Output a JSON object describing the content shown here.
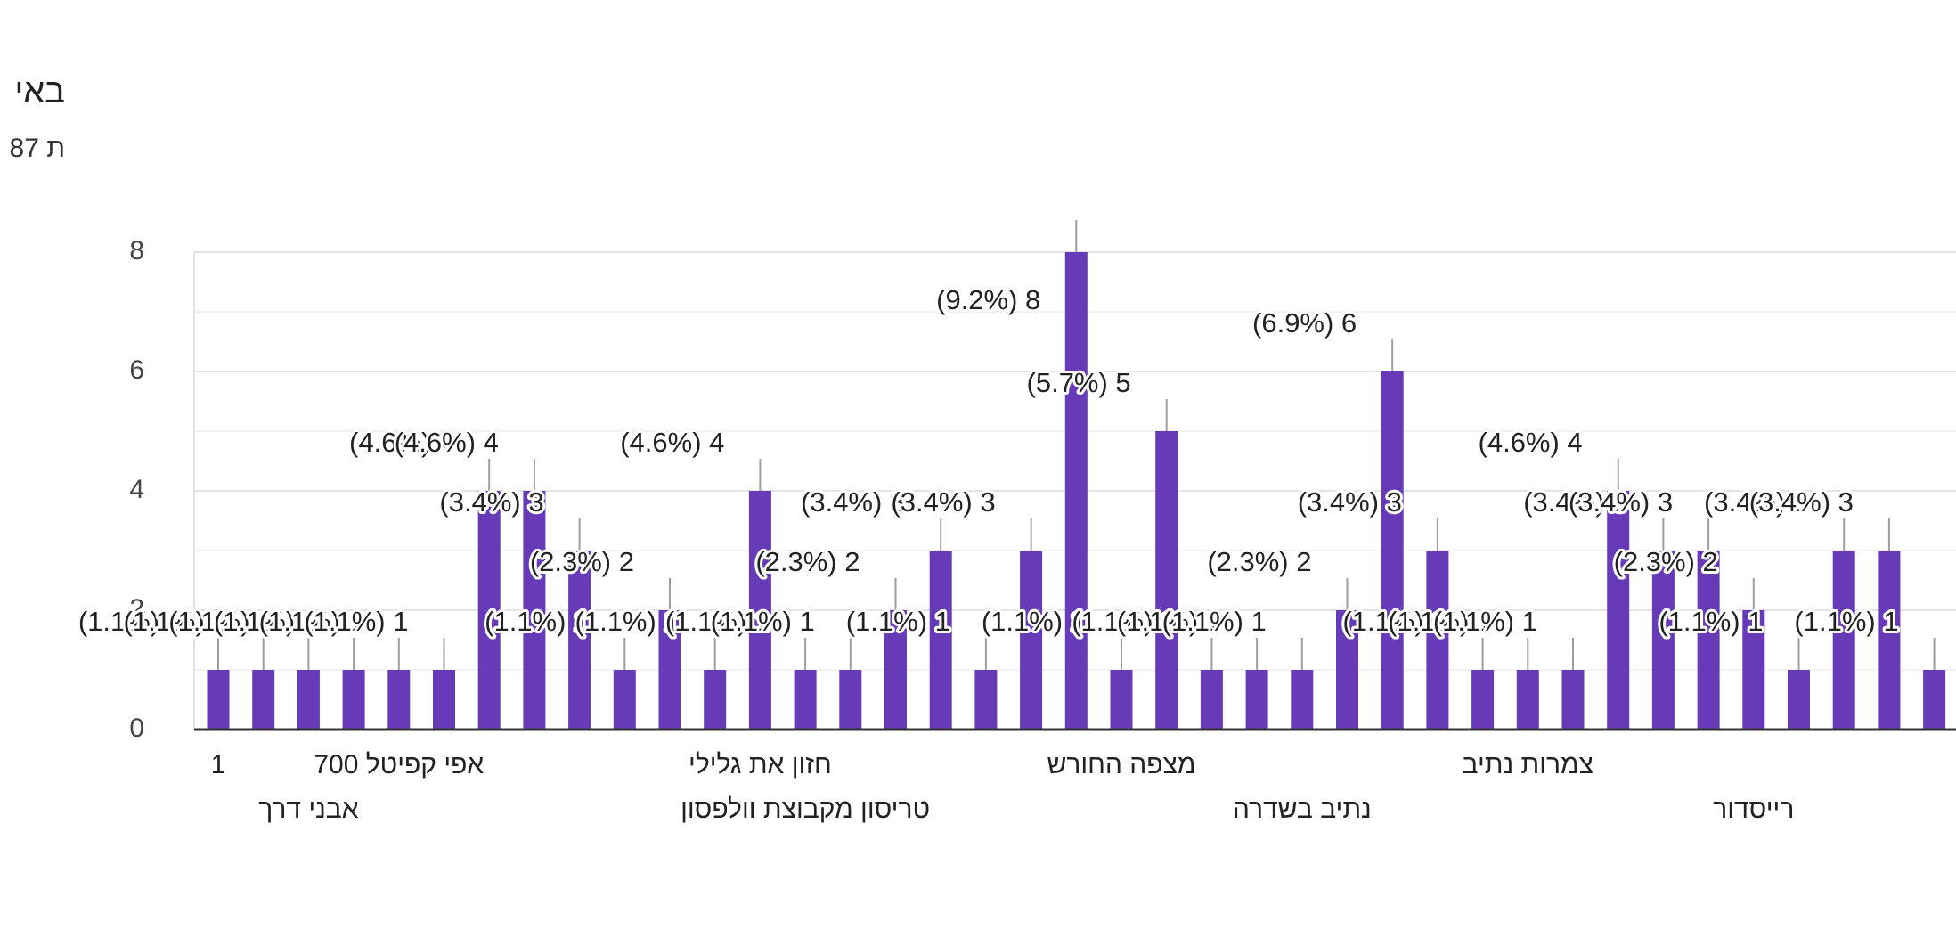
{
  "chart_data": {
    "type": "bar",
    "title": "באי",
    "subtitle": "87 ת",
    "categories": [
      "1",
      null,
      "אבני דרך",
      null,
      "אפי קפיטל 700",
      null,
      null,
      null,
      null,
      null,
      null,
      null,
      "חזון את גלילי",
      "טריסון מקבוצת וולפסון",
      null,
      null,
      null,
      null,
      null,
      null,
      "מצפה החורש",
      null,
      null,
      null,
      "נתיב בשדרה",
      null,
      null,
      null,
      null,
      "צמרות נתיב",
      null,
      null,
      null,
      null,
      "רייסדור",
      null,
      null,
      null,
      null
    ],
    "values": [
      1,
      1,
      1,
      1,
      1,
      1,
      4,
      4,
      3,
      1,
      2,
      1,
      4,
      1,
      1,
      2,
      3,
      1,
      3,
      8,
      1,
      5,
      1,
      1,
      1,
      2,
      6,
      3,
      1,
      1,
      1,
      4,
      3,
      3,
      2,
      1,
      3,
      3,
      1
    ],
    "value_labels": [
      "(1.1%) 1",
      "(1.1%) 1",
      "(1.1%) 1",
      "(1.1%) 1",
      "(1.1%) 1",
      "(1.1%) 1",
      "(4.6%) 4",
      "(4.6%) 4",
      "(3.4%) 3",
      "(1.1%) 1",
      "(2.3%) 2",
      "(1.1%) 1",
      "(4.6%) 4",
      "(1.1%) 1",
      "(1.1%) 1",
      "(2.3%) 2",
      "(3.4%) 3",
      "(1.1%) 1",
      "(3.4%) 3",
      "(9.2%) 8",
      "(1.1%) 1",
      "(5.7%) 5",
      "(1.1%) 1",
      "(1.1%) 1",
      "(1.1%) 1",
      "(2.3%) 2",
      "(6.9%) 6",
      "(3.4%) 3",
      "(1.1%) 1",
      "(1.1%) 1",
      "(1.1%) 1",
      "(4.6%) 4",
      "(3.4%) 3",
      "(3.4%) 3",
      "(2.3%) 2",
      "(1.1%) 1",
      "(3.4%) 3",
      "(3.4%) 3",
      "(1.1%) 1"
    ],
    "color": "#673ab7",
    "ylim": [
      0,
      8
    ],
    "yticks": [
      0,
      2,
      4,
      6,
      8
    ],
    "grid": true,
    "minor_grid": true
  }
}
